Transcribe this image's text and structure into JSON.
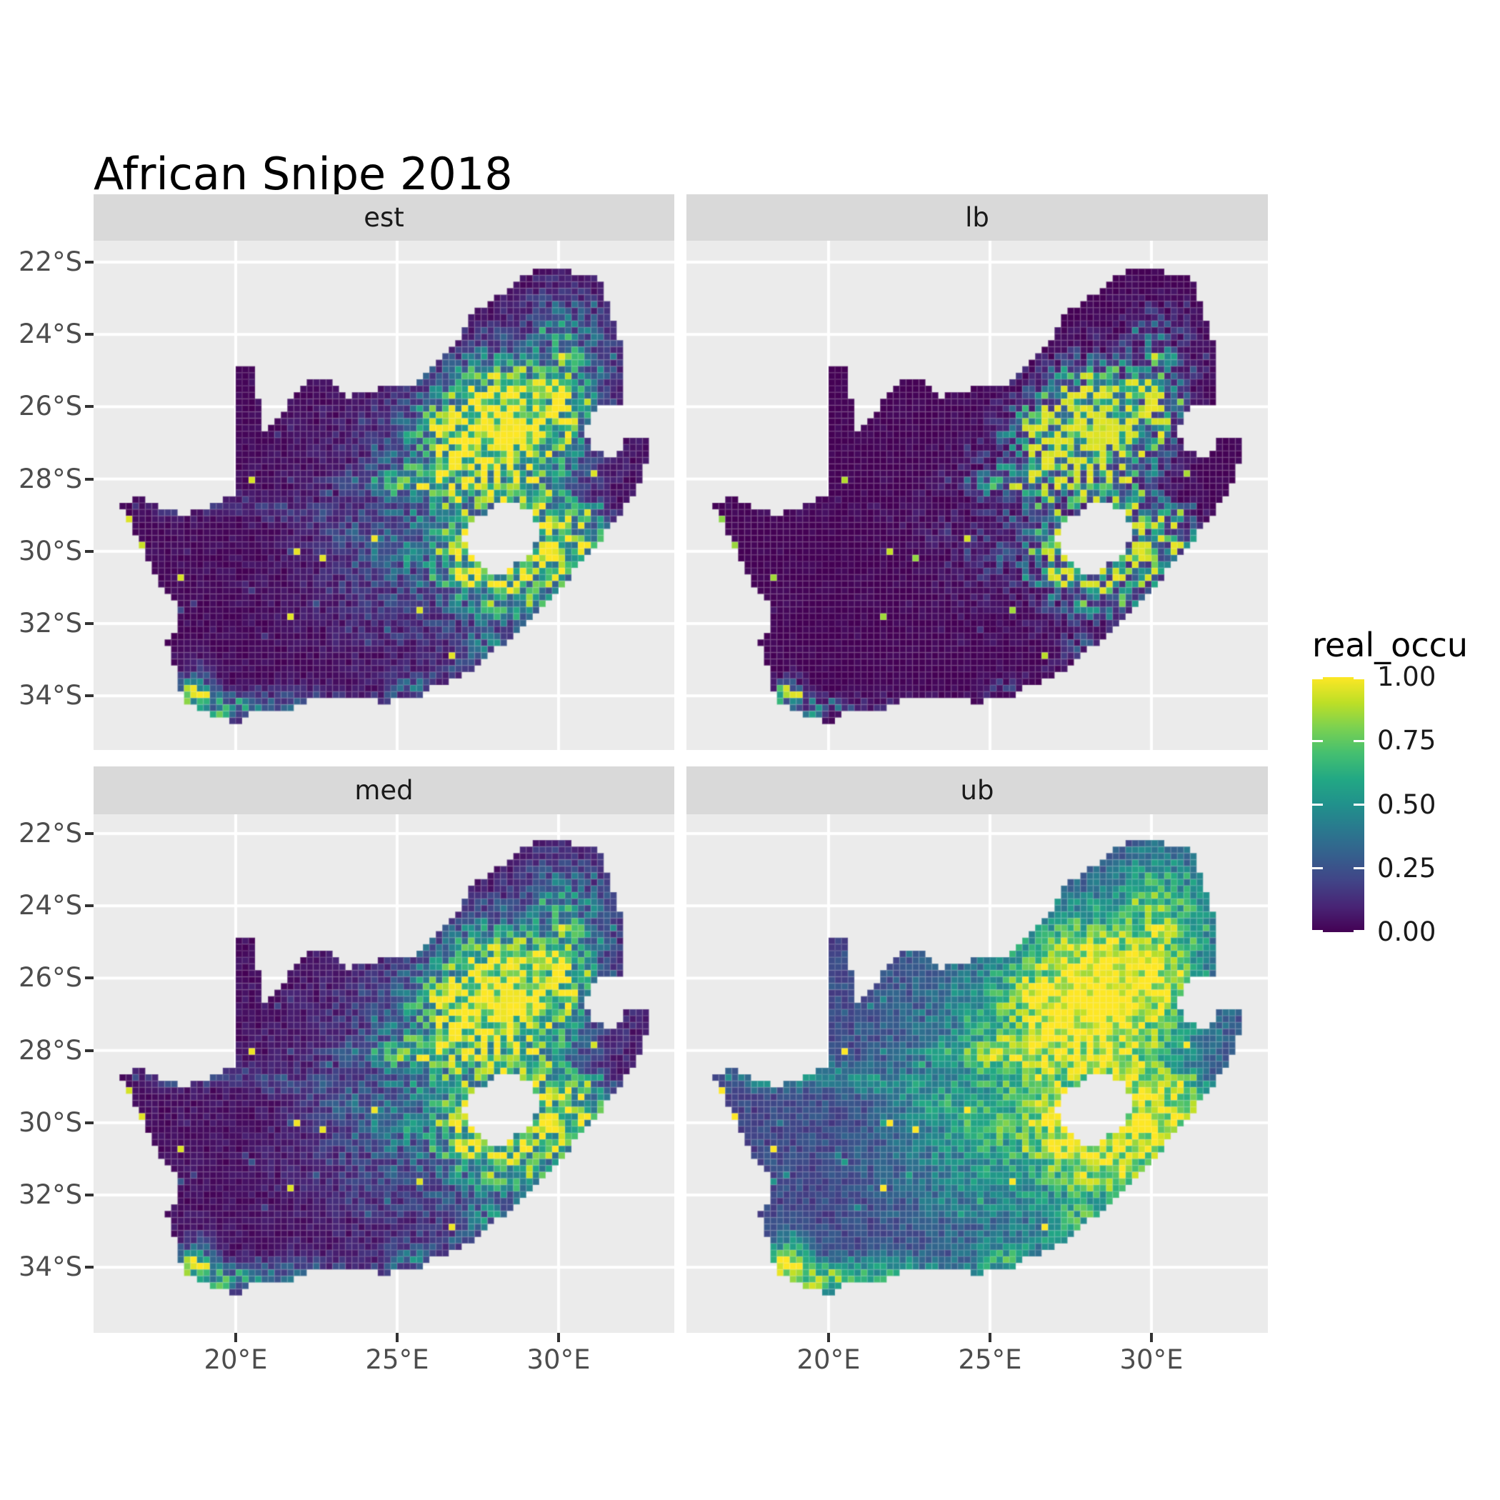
{
  "title": "African Snipe 2018",
  "facets": {
    "labels": [
      "est",
      "lb",
      "med",
      "ub"
    ]
  },
  "axis": {
    "x_ticks": [
      "20°E",
      "25°E",
      "30°E"
    ],
    "y_ticks": [
      "22°S",
      "24°S",
      "26°S",
      "28°S",
      "30°S",
      "32°S",
      "34°S"
    ]
  },
  "legend": {
    "title": "real_occu",
    "tick_labels": [
      "1.00",
      "0.75",
      "0.50",
      "0.25",
      "0.00"
    ],
    "tick_values": [
      1.0,
      0.75,
      0.5,
      0.25,
      0.0
    ]
  },
  "colors": {
    "background": "#FFFFFF",
    "panel_bg": "#EBEBEB",
    "strip_bg": "#D9D9D9",
    "gridline": "#FFFFFF",
    "axis_text": "#4D4D4D",
    "tick_mark": "#333333",
    "title_text": "#000000",
    "viridis": [
      "#440154",
      "#482475",
      "#414487",
      "#355f8d",
      "#2a788e",
      "#21918c",
      "#22a884",
      "#44bf70",
      "#7ad151",
      "#bddf26",
      "#fde725"
    ]
  },
  "chart_data": {
    "type": "heatmap",
    "subtype": "faceted-raster-map",
    "title": "African Snipe 2018",
    "region": "South Africa (Lesotho shown as hole)",
    "variable": "real_occu",
    "facets": [
      "est",
      "lb",
      "med",
      "ub"
    ],
    "legend_position": "right",
    "scale": {
      "palette": "viridis",
      "limits": [
        0,
        1
      ],
      "breaks": [
        0,
        0.25,
        0.5,
        0.75,
        1
      ]
    },
    "x_axis": {
      "unit": "°E",
      "tick_values": [
        20,
        25,
        30
      ],
      "panel_range": [
        15.6,
        33.6
      ]
    },
    "y_axis": {
      "unit": "°S",
      "tick_values": [
        -22,
        -24,
        -26,
        -28,
        -30,
        -32,
        -34
      ],
      "panel_range": [
        -35.8,
        -21.4
      ]
    },
    "grid": "major white gridlines on grey panel",
    "cell_size_deg": [
      0.2,
      0.18
    ],
    "base_occupancy": 0.035,
    "facet_transforms": [
      {
        "facet": "est",
        "exponent": 1.18,
        "gain": 1.0
      },
      {
        "facet": "lb",
        "exponent": 2.1,
        "gain": 0.95
      },
      {
        "facet": "med",
        "exponent": 0.98,
        "gain": 1.0
      },
      {
        "facet": "ub",
        "exponent": 0.48,
        "gain": 1.06
      }
    ],
    "hotspots": [
      [
        28.6,
        -26.35,
        1.45,
        0.95,
        0.97
      ],
      [
        27.1,
        -27.4,
        1.35,
        0.95,
        0.45
      ],
      [
        29.55,
        -29.25,
        0.8,
        0.8,
        0.6
      ],
      [
        27.35,
        -30.15,
        0.8,
        0.7,
        0.5
      ],
      [
        28.7,
        -31.05,
        1.0,
        0.7,
        0.5
      ],
      [
        30.25,
        -24.9,
        0.6,
        1.1,
        0.38
      ],
      [
        27.0,
        -28.8,
        2.6,
        2.4,
        0.26
      ],
      [
        27.8,
        -24.9,
        1.2,
        0.8,
        0.16
      ],
      [
        31.4,
        -24.4,
        0.45,
        0.9,
        0.16
      ],
      [
        18.7,
        -33.95,
        0.45,
        0.4,
        0.62
      ],
      [
        19.5,
        -34.4,
        0.9,
        0.3,
        0.45
      ],
      [
        21.6,
        -34.15,
        1.3,
        0.3,
        0.25
      ],
      [
        25.6,
        -33.85,
        0.75,
        0.35,
        0.26
      ],
      [
        27.9,
        -32.85,
        0.8,
        0.5,
        0.25
      ],
      [
        30.45,
        -30.45,
        0.65,
        0.6,
        0.4
      ],
      [
        31.0,
        -29.55,
        0.55,
        0.55,
        0.33
      ],
      [
        24.9,
        -30.8,
        1.8,
        1.4,
        0.09
      ],
      [
        29.9,
        -23.4,
        0.9,
        0.7,
        0.14
      ],
      [
        18.3,
        -28.8,
        0.8,
        0.18,
        0.16
      ],
      [
        20.2,
        -28.65,
        0.8,
        0.18,
        0.15
      ],
      [
        22.0,
        -28.95,
        0.8,
        0.2,
        0.15
      ],
      [
        23.6,
        -29.5,
        0.7,
        0.25,
        0.15
      ],
      [
        24.9,
        -30.1,
        0.6,
        0.3,
        0.14
      ],
      [
        25.7,
        -28.1,
        0.9,
        0.25,
        0.2
      ],
      [
        24.3,
        -28.0,
        0.8,
        0.2,
        0.14
      ]
    ],
    "outline": [
      [
        20.0,
        -24.88
      ],
      [
        20.62,
        -24.95
      ],
      [
        20.7,
        -25.7
      ],
      [
        20.8,
        -26.68
      ],
      [
        21.05,
        -26.6
      ],
      [
        21.5,
        -26.05
      ],
      [
        21.95,
        -25.55
      ],
      [
        22.28,
        -25.28
      ],
      [
        22.92,
        -25.3
      ],
      [
        23.4,
        -25.72
      ],
      [
        24.05,
        -25.6
      ],
      [
        24.6,
        -25.45
      ],
      [
        25.1,
        -25.35
      ],
      [
        25.65,
        -25.35
      ],
      [
        25.95,
        -24.92
      ],
      [
        26.45,
        -24.58
      ],
      [
        26.9,
        -24.22
      ],
      [
        27.2,
        -23.52
      ],
      [
        27.72,
        -23.18
      ],
      [
        28.3,
        -22.88
      ],
      [
        28.95,
        -22.38
      ],
      [
        29.35,
        -22.15
      ],
      [
        29.95,
        -22.18
      ],
      [
        30.5,
        -22.28
      ],
      [
        31.25,
        -22.35
      ],
      [
        31.55,
        -23.15
      ],
      [
        31.8,
        -23.85
      ],
      [
        32.0,
        -24.65
      ],
      [
        32.03,
        -25.4
      ],
      [
        31.95,
        -25.88
      ],
      [
        31.35,
        -25.93
      ],
      [
        30.98,
        -26.22
      ],
      [
        30.82,
        -26.78
      ],
      [
        31.1,
        -27.18
      ],
      [
        31.6,
        -27.35
      ],
      [
        31.96,
        -27.3
      ],
      [
        32.13,
        -26.85
      ],
      [
        32.89,
        -26.86
      ],
      [
        32.68,
        -27.6
      ],
      [
        32.38,
        -28.45
      ],
      [
        32.0,
        -28.85
      ],
      [
        31.55,
        -29.4
      ],
      [
        31.05,
        -29.9
      ],
      [
        30.6,
        -30.42
      ],
      [
        30.15,
        -31.0
      ],
      [
        29.65,
        -31.45
      ],
      [
        29.15,
        -31.9
      ],
      [
        28.65,
        -32.25
      ],
      [
        28.05,
        -32.75
      ],
      [
        27.65,
        -33.08
      ],
      [
        27.05,
        -33.4
      ],
      [
        26.4,
        -33.72
      ],
      [
        25.95,
        -33.78
      ],
      [
        25.65,
        -34.02
      ],
      [
        25.0,
        -34.02
      ],
      [
        24.78,
        -34.22
      ],
      [
        24.05,
        -34.08
      ],
      [
        23.35,
        -34.12
      ],
      [
        22.85,
        -34.02
      ],
      [
        22.2,
        -34.12
      ],
      [
        21.75,
        -34.42
      ],
      [
        21.1,
        -34.42
      ],
      [
        20.5,
        -34.48
      ],
      [
        19.98,
        -34.8
      ],
      [
        19.55,
        -34.62
      ],
      [
        19.3,
        -34.62
      ],
      [
        18.92,
        -34.4
      ],
      [
        18.8,
        -34.1
      ],
      [
        18.43,
        -34.33
      ],
      [
        18.3,
        -33.92
      ],
      [
        18.18,
        -33.4
      ],
      [
        17.98,
        -32.8
      ],
      [
        17.86,
        -32.55
      ],
      [
        18.3,
        -32.05
      ],
      [
        18.23,
        -31.55
      ],
      [
        17.65,
        -30.85
      ],
      [
        17.2,
        -30.15
      ],
      [
        16.92,
        -29.5
      ],
      [
        16.48,
        -28.9
      ],
      [
        16.45,
        -28.6
      ],
      [
        17.15,
        -28.55
      ],
      [
        17.75,
        -28.82
      ],
      [
        18.35,
        -29.0
      ],
      [
        18.95,
        -28.82
      ],
      [
        19.45,
        -28.65
      ],
      [
        19.98,
        -28.45
      ],
      [
        19.99,
        -27.5
      ],
      [
        19.99,
        -26.4
      ],
      [
        19.99,
        -25.5
      ]
    ],
    "hole": [
      [
        27.78,
        -28.92
      ],
      [
        28.25,
        -28.62
      ],
      [
        28.72,
        -28.7
      ],
      [
        29.12,
        -28.92
      ],
      [
        29.4,
        -29.3
      ],
      [
        29.45,
        -29.67
      ],
      [
        29.12,
        -30.0
      ],
      [
        28.68,
        -30.38
      ],
      [
        28.22,
        -30.67
      ],
      [
        27.93,
        -30.62
      ],
      [
        27.55,
        -30.4
      ],
      [
        27.28,
        -30.0
      ],
      [
        27.03,
        -29.58
      ],
      [
        27.28,
        -29.23
      ]
    ]
  }
}
